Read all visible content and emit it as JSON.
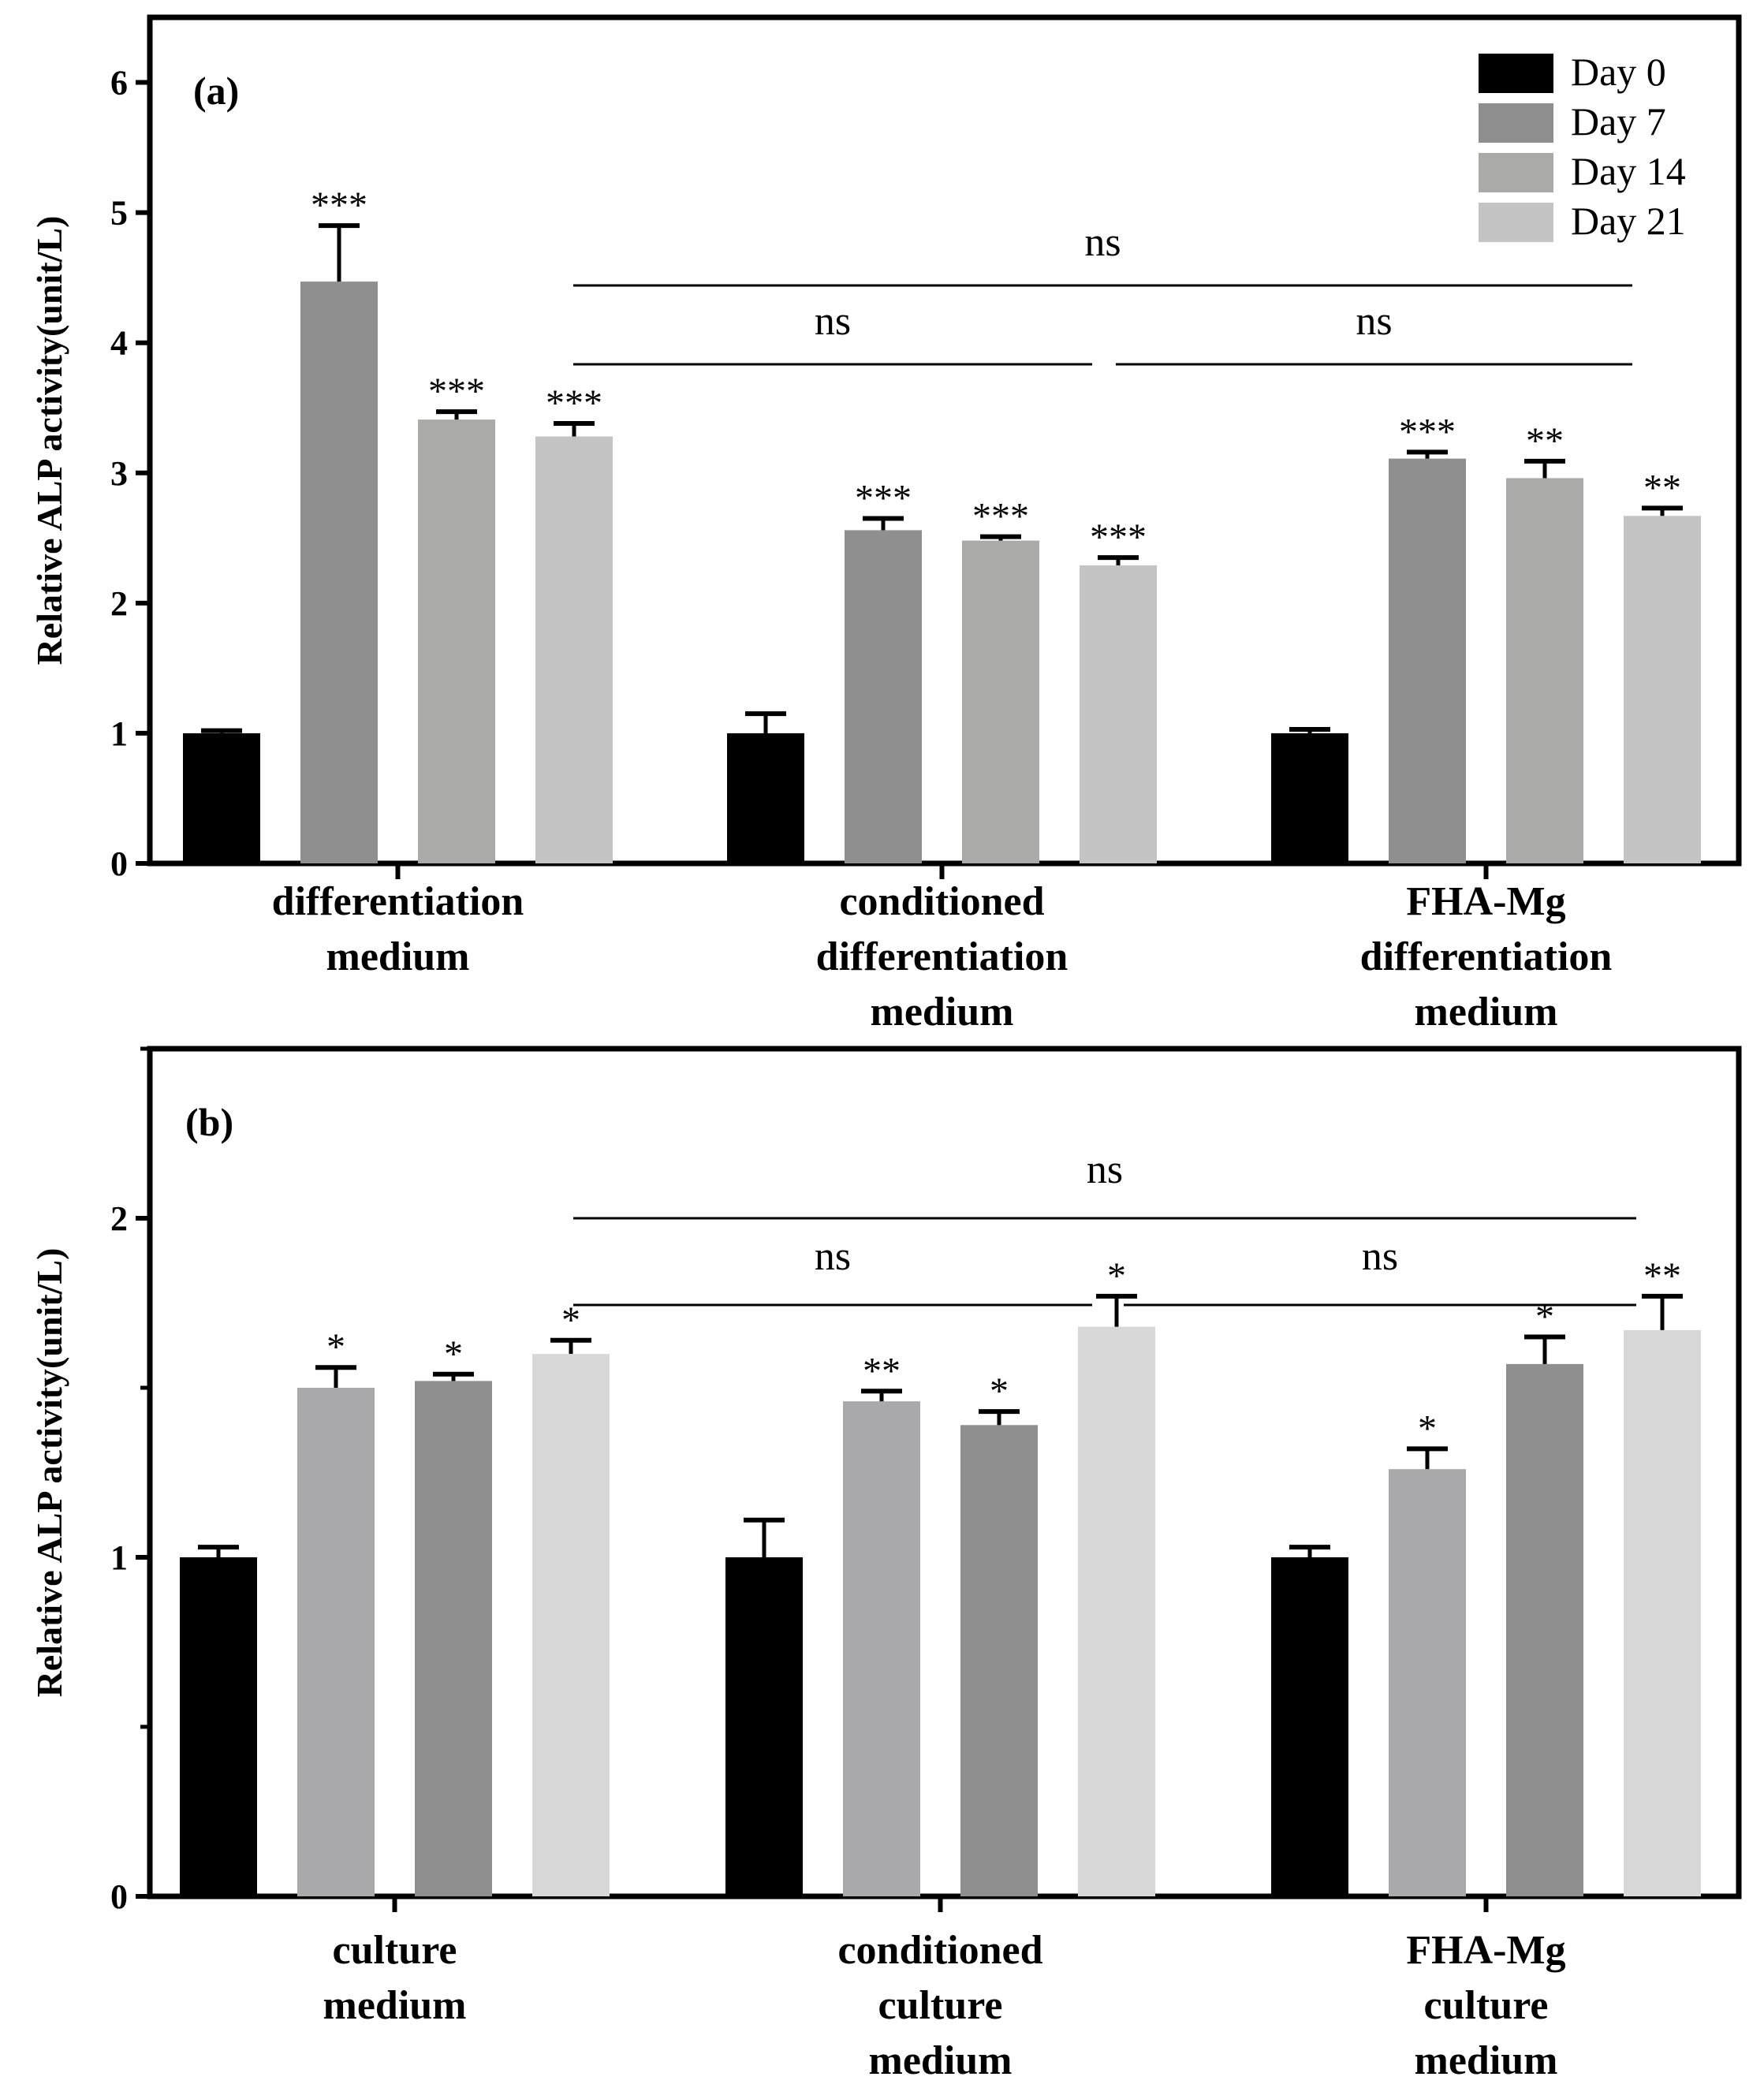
{
  "chart_data": [
    {
      "type": "bar",
      "panel_label": "(a)",
      "ylabel": "Relative ALP activity(unit/L)",
      "ylim": [
        0,
        6.5
      ],
      "yticks": [
        "0",
        "1",
        "2",
        "3",
        "4",
        "5",
        "6"
      ],
      "categories": [
        [
          "differentiation",
          "medium"
        ],
        [
          "conditioned",
          "differentiation",
          "medium"
        ],
        [
          "FHA-Mg",
          "differentiation",
          "medium"
        ]
      ],
      "legend": {
        "position": "top-right",
        "entries": [
          {
            "label": "Day 0",
            "color": "#000000"
          },
          {
            "label": "Day 7",
            "color": "#8f8f8f"
          },
          {
            "label": "Day 14",
            "color": "#aaaaa8"
          },
          {
            "label": "Day 21",
            "color": "#c4c4c4"
          }
        ]
      },
      "series": [
        {
          "name": "Day 0",
          "color": "#000000",
          "values": [
            1.0,
            1.0,
            1.0
          ],
          "errors": [
            0.02,
            0.15,
            0.03
          ],
          "stars": [
            "",
            "",
            ""
          ]
        },
        {
          "name": "Day 7",
          "color": "#8f8f8f",
          "values": [
            4.47,
            2.56,
            3.11
          ],
          "errors": [
            0.43,
            0.09,
            0.05
          ],
          "stars": [
            "***",
            "***",
            "***"
          ]
        },
        {
          "name": "Day 14",
          "color": "#aaaaa8",
          "values": [
            3.41,
            2.48,
            2.96
          ],
          "errors": [
            0.06,
            0.03,
            0.13
          ],
          "stars": [
            "***",
            "***",
            "**"
          ]
        },
        {
          "name": "Day 21",
          "color": "#c4c4c4",
          "values": [
            3.28,
            2.29,
            2.67
          ],
          "errors": [
            0.1,
            0.06,
            0.06
          ],
          "stars": [
            "***",
            "***",
            "**"
          ]
        }
      ],
      "significance": [
        {
          "from": 0,
          "to": 2,
          "label": "ns",
          "level": 2
        },
        {
          "from": 0,
          "to": 1,
          "label": "ns",
          "level": 1
        },
        {
          "from": 1,
          "to": 2,
          "label": "ns",
          "level": 1
        }
      ]
    },
    {
      "type": "bar",
      "panel_label": "(b)",
      "ylabel": "Relative ALP activity(unit/L)",
      "ylim": [
        0,
        2.5
      ],
      "yticks": [
        "0",
        "1",
        "2"
      ],
      "categories": [
        [
          "culture",
          "medium"
        ],
        [
          "conditioned",
          "culture",
          "medium"
        ],
        [
          "FHA-Mg",
          "culture",
          "medium"
        ]
      ],
      "bar_colors": [
        [
          "#000000",
          "#a9a9ab",
          "#8f8f8f",
          "#d8d8d8"
        ],
        [
          "#000000",
          "#a9a9ab",
          "#8f8f8f",
          "#d8d8d8"
        ],
        [
          "#000000",
          "#a9a9ab",
          "#8f8f8f",
          "#d8d8d8"
        ]
      ],
      "series": [
        {
          "name": "Day 0",
          "values": [
            1.0,
            1.0,
            1.0
          ],
          "errors": [
            0.03,
            0.11,
            0.03
          ],
          "stars": [
            "",
            "",
            ""
          ]
        },
        {
          "name": "Day 7",
          "values": [
            1.5,
            1.46,
            1.26
          ],
          "errors": [
            0.06,
            0.03,
            0.06
          ],
          "stars": [
            "*",
            "**",
            "*"
          ]
        },
        {
          "name": "Day 14",
          "values": [
            1.52,
            1.39,
            1.57
          ],
          "errors": [
            0.02,
            0.04,
            0.08
          ],
          "stars": [
            "*",
            "*",
            "*"
          ]
        },
        {
          "name": "Day 21",
          "values": [
            1.6,
            1.68,
            1.67
          ],
          "errors": [
            0.04,
            0.09,
            0.1
          ],
          "stars": [
            "*",
            "*",
            "**"
          ]
        }
      ],
      "significance": [
        {
          "from": 0,
          "to": 2,
          "label": "ns",
          "level": 2
        },
        {
          "from": 0,
          "to": 1,
          "label": "ns",
          "level": 1
        },
        {
          "from": 1,
          "to": 2,
          "label": "ns",
          "level": 1
        }
      ]
    }
  ]
}
